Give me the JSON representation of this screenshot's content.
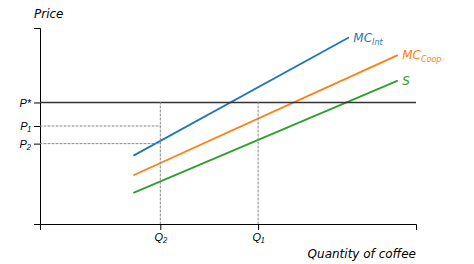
{
  "chart_data": {
    "type": "line",
    "xlabel": "Quantity of coffee",
    "ylabel": "Price",
    "xlim": [
      0,
      10
    ],
    "ylim": [
      0,
      10
    ],
    "xticks": [
      {
        "value": 3.2,
        "label": "Q₂"
      },
      {
        "value": 5.8,
        "label": "Q₁"
      }
    ],
    "yticks": [
      {
        "value": 4.1,
        "label": "P₂"
      },
      {
        "value": 5.0,
        "label": "P₁"
      },
      {
        "value": 6.2,
        "label": "P*"
      }
    ],
    "grid": false,
    "series": [
      {
        "name": "MCInt",
        "x": [
          2.5,
          8.2
        ],
        "values": [
          3.5,
          9.5
        ]
      },
      {
        "name": "MCCoop",
        "x": [
          2.5,
          9.5
        ],
        "values": [
          2.5,
          8.6
        ]
      },
      {
        "name": "S",
        "x": [
          2.5,
          9.5
        ],
        "values": [
          1.6,
          7.3
        ]
      },
      {
        "x": [
          0,
          10
        ],
        "values": [
          6.2,
          6.2
        ],
        "line_style": "solid"
      },
      {
        "x": [
          3.2,
          3.2
        ],
        "values": [
          0,
          6.2
        ],
        "line_style": "dotted"
      },
      {
        "x": [
          5.8,
          5.8
        ],
        "values": [
          0,
          6.2
        ],
        "line_style": "dotted"
      },
      {
        "x": [
          0,
          3.2
        ],
        "values": [
          5.0,
          5.0
        ],
        "line_style": "dotted"
      },
      {
        "x": [
          0,
          3.2
        ],
        "values": [
          4.1,
          4.1
        ],
        "line_style": "dotted"
      }
    ]
  }
}
